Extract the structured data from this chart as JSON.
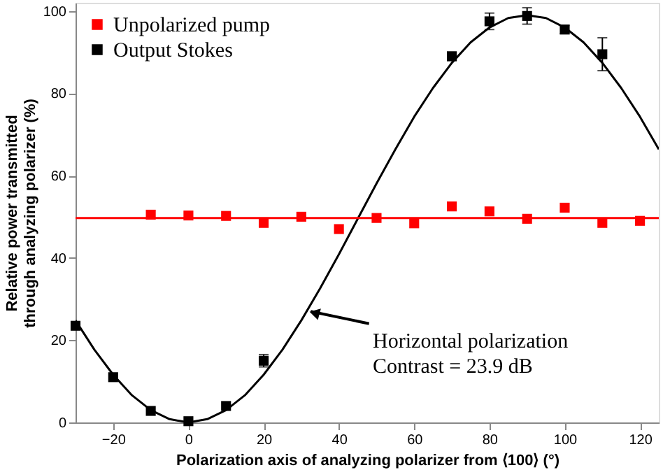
{
  "chart_data": {
    "type": "scatter",
    "xlabel": "Polarization axis of analyzing polarizer from ⟨100⟩ (°)",
    "ylabel": "Relative power transmitted\nthrough analyzing polarizer (%)",
    "xlim": [
      -30,
      125
    ],
    "ylim": [
      0,
      102
    ],
    "xticks": [
      -20,
      0,
      20,
      40,
      60,
      80,
      100,
      120
    ],
    "yticks": [
      0,
      20,
      40,
      60,
      80,
      100
    ],
    "grid": false,
    "legend": "top left",
    "marker": "square",
    "series": [
      {
        "name": "Unpolarized pump",
        "color": "#ff0000",
        "x": [
          -10,
          0,
          10,
          20,
          30,
          40,
          50,
          60,
          70,
          80,
          90,
          100,
          110,
          120
        ],
        "values": [
          50.5,
          50.3,
          50.2,
          48.5,
          50,
          47,
          49.7,
          48.4,
          52.5,
          51.3,
          49.5,
          52.2,
          48.5,
          49
        ]
      },
      {
        "name": "Output Stokes",
        "color": "#000000",
        "x": [
          -30,
          -20,
          -10,
          0,
          10,
          20,
          70,
          80,
          90,
          100,
          110
        ],
        "values": [
          23.5,
          11,
          2.8,
          0.3,
          4,
          15,
          89,
          97.5,
          98.8,
          95.5,
          89.5
        ],
        "errors": [
          null,
          null,
          null,
          null,
          null,
          1.5,
          1,
          2,
          2,
          1,
          4
        ]
      },
      {
        "type": "line",
        "marker": "none",
        "color": "#000000",
        "x": [
          -30,
          -25,
          -20,
          -15,
          -10,
          -5,
          0,
          5,
          10,
          15,
          20,
          25,
          30,
          35,
          40,
          45,
          50,
          55,
          60,
          65,
          70,
          75,
          80,
          85,
          90,
          95,
          100,
          105,
          110,
          115,
          120,
          125
        ],
        "values": [
          24.8,
          17.7,
          11.6,
          6.6,
          3,
          0.8,
          0,
          0.8,
          3,
          6.6,
          11.6,
          17.7,
          24.8,
          32.6,
          40.9,
          49.5,
          58.1,
          66.4,
          74.3,
          81.3,
          87.4,
          92.4,
          96,
          98.3,
          99,
          98.3,
          96,
          92.4,
          87.4,
          81.3,
          74.3,
          66.4
        ]
      }
    ],
    "ref_lines": [
      {
        "axis": "y",
        "value": 49.7,
        "color": "#ff0000",
        "line_style": "solid"
      }
    ],
    "annotations": [
      {
        "text": "Horizontal polarization\nContrast = 23.9 dB",
        "x": 31,
        "y": 27
      }
    ]
  }
}
